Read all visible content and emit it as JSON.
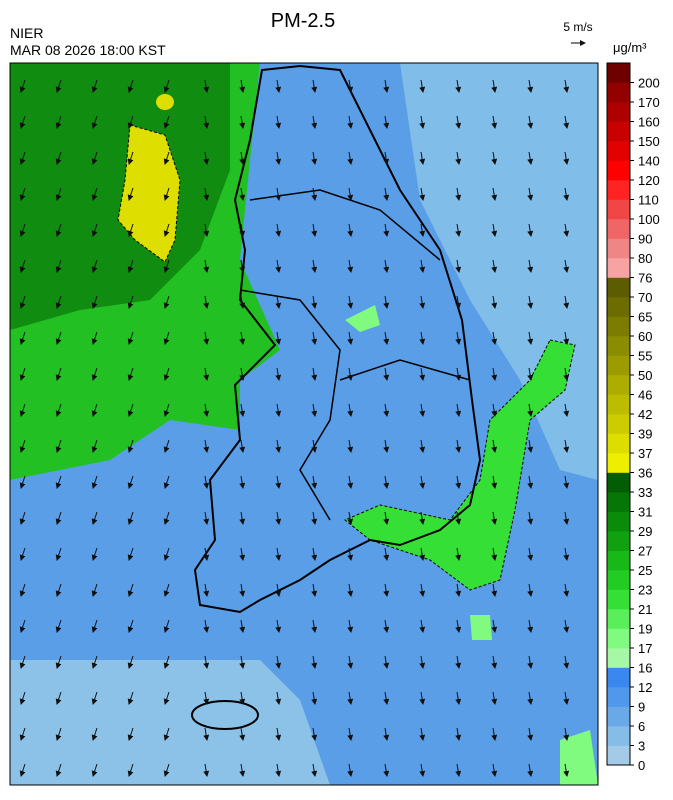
{
  "header": {
    "agency": "NIER",
    "datetime": "MAR 08 2026 18:00 KST",
    "title": "PM-2.5",
    "wind_scale_label": "5 m/s",
    "units": "μg/m³"
  },
  "colorbar": {
    "ticks": [
      0,
      3,
      6,
      9,
      12,
      16,
      17,
      19,
      21,
      23,
      25,
      27,
      29,
      31,
      33,
      36,
      37,
      39,
      42,
      46,
      50,
      55,
      60,
      65,
      70,
      76,
      80,
      90,
      100,
      110,
      120,
      140,
      150,
      160,
      170,
      200
    ],
    "colors": [
      "#a3cbe8",
      "#86bce8",
      "#6aa9e8",
      "#4f98ec",
      "#3a88ef",
      "#a6f7a6",
      "#80fb80",
      "#5aee5a",
      "#35df35",
      "#22cc22",
      "#18b818",
      "#10a010",
      "#0a8c0a",
      "#067606",
      "#035e03",
      "#eeee00",
      "#dddd00",
      "#cccc00",
      "#bcbc00",
      "#adad00",
      "#9c9c00",
      "#8c8c00",
      "#7c7c00",
      "#6c6c00",
      "#5c5c00",
      "#f7a3a3",
      "#f08585",
      "#f06666",
      "#f24646",
      "#ff2424",
      "#ff0000",
      "#e20000",
      "#c80000",
      "#ae0000",
      "#920000",
      "#6e0000"
    ]
  }
}
